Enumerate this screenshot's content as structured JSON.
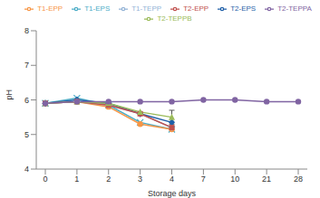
{
  "chart_data": {
    "type": "line",
    "x_label": "Storage days",
    "y_label": "pH",
    "categories": [
      "0",
      "1",
      "2",
      "3",
      "4",
      "7",
      "10",
      "21",
      "28"
    ],
    "ylim": [
      4,
      8
    ],
    "yticks": [
      4,
      5,
      6,
      7,
      8
    ],
    "grid": false,
    "legend": "top",
    "series": [
      {
        "name": "T1-EPS",
        "color": "#4bacc6",
        "marker": "x",
        "values": [
          5.9,
          6.05,
          5.85,
          5.35,
          5.15,
          null,
          null,
          null,
          null
        ]
      },
      {
        "name": "T1-EPP",
        "color": "#f79646",
        "marker": "circle",
        "values": [
          5.9,
          5.95,
          5.8,
          5.3,
          5.15,
          null,
          null,
          null,
          null
        ]
      },
      {
        "name": "T1-TEPP",
        "color": "#93b3d6",
        "marker": "plus",
        "values": [
          5.9,
          5.95,
          5.85,
          5.6,
          5.2,
          null,
          null,
          null,
          null
        ]
      },
      {
        "name": "T2-EPS",
        "color": "#1f5fa8",
        "marker": "diamond",
        "values": [
          5.9,
          6.0,
          5.9,
          5.6,
          5.35,
          null,
          null,
          null,
          null
        ]
      },
      {
        "name": "T2-EPP",
        "color": "#c0504d",
        "marker": "square",
        "values": [
          5.9,
          5.95,
          5.85,
          5.6,
          5.2,
          null,
          null,
          null,
          null
        ]
      },
      {
        "name": "T2-TEPPB",
        "color": "#9bbb59",
        "marker": "triangle",
        "values": [
          5.9,
          5.95,
          5.9,
          5.65,
          5.5,
          null,
          null,
          null,
          null
        ],
        "error": [
          null,
          null,
          null,
          null,
          0.2,
          null,
          null,
          null,
          null
        ]
      },
      {
        "name": "T2-TEPPA",
        "color": "#8064a2",
        "marker": "circle",
        "values": [
          5.9,
          5.95,
          5.95,
          5.95,
          5.95,
          6.0,
          6.0,
          5.95,
          5.95
        ]
      }
    ]
  }
}
